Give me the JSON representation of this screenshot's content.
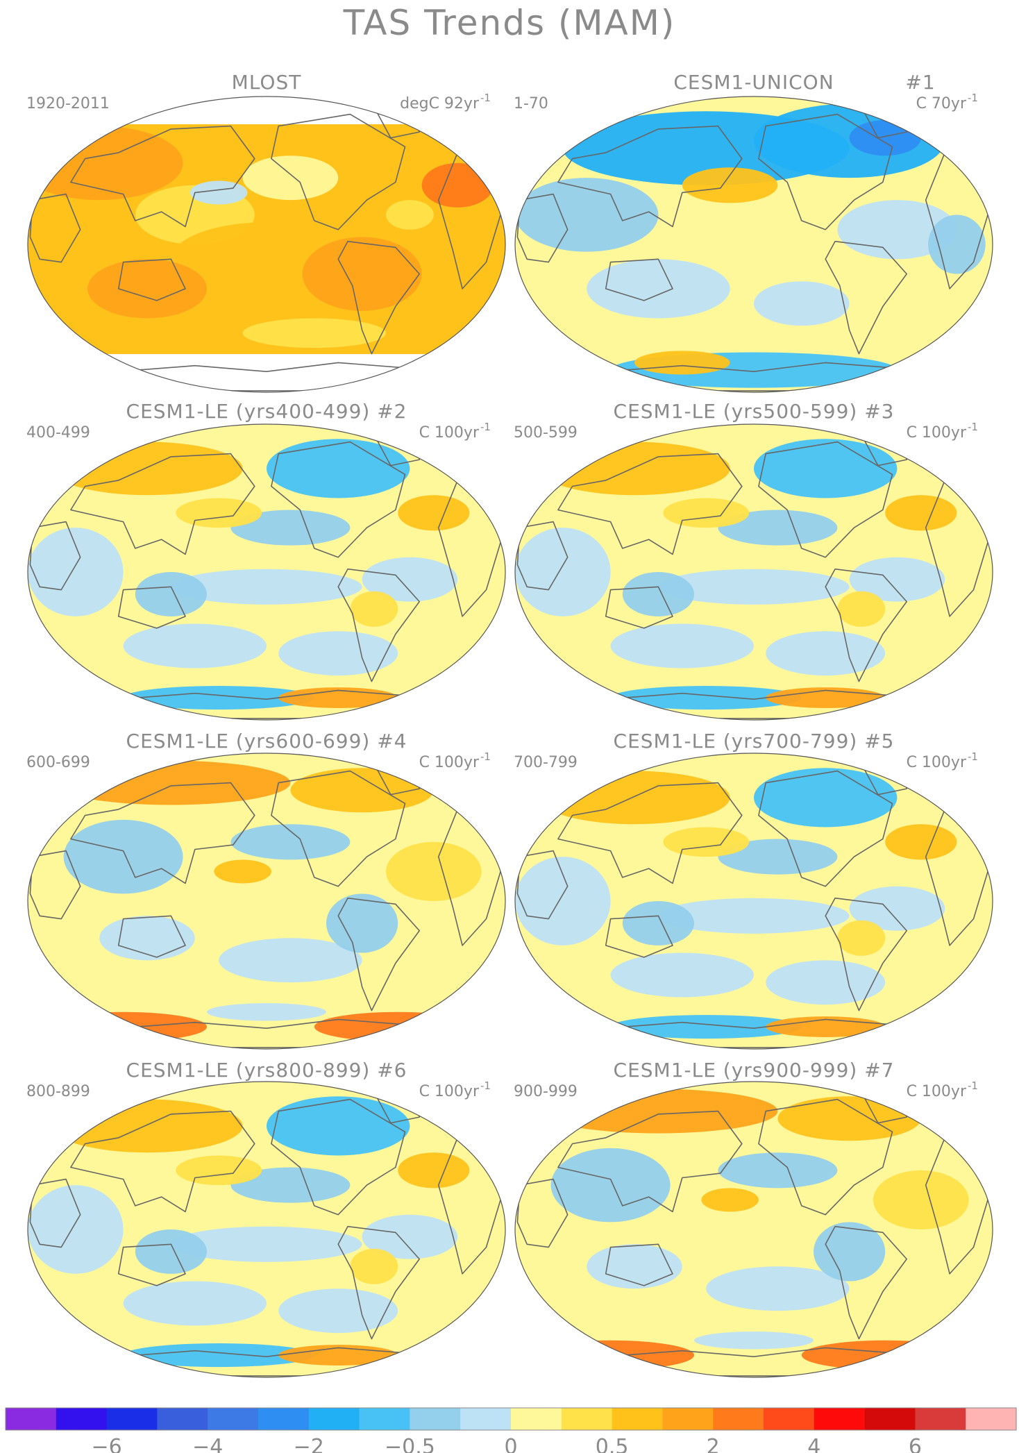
{
  "figure": {
    "title": "TAS Trends (MAM)",
    "panels": [
      {
        "title": "MLOST",
        "period": "1920-2011",
        "units": "degC 92yr",
        "units_exp": "-1",
        "number": "",
        "theme": "obs"
      },
      {
        "title": "CESM1-UNICON",
        "period": "1-70",
        "units": "C 70yr",
        "units_exp": "-1",
        "number": "#1",
        "theme": "cool"
      },
      {
        "title": "CESM1-LE (yrs400-499)",
        "period": "400-499",
        "units": "C 100yr",
        "units_exp": "-1",
        "number": "#2",
        "theme": "mixed"
      },
      {
        "title": "CESM1-LE (yrs500-599)",
        "period": "500-599",
        "units": "C 100yr",
        "units_exp": "-1",
        "number": "#3",
        "theme": "mixed"
      },
      {
        "title": "CESM1-LE (yrs600-699)",
        "period": "600-699",
        "units": "C 100yr",
        "units_exp": "-1",
        "number": "#4",
        "theme": "warmish"
      },
      {
        "title": "CESM1-LE (yrs700-799)",
        "period": "700-799",
        "units": "C 100yr",
        "units_exp": "-1",
        "number": "#5",
        "theme": "mixed"
      },
      {
        "title": "CESM1-LE (yrs800-899)",
        "period": "800-899",
        "units": "C 100yr",
        "units_exp": "-1",
        "number": "#6",
        "theme": "mixed"
      },
      {
        "title": "CESM1-LE (yrs900-999)",
        "period": "900-999",
        "units": "C 100yr",
        "units_exp": "-1",
        "number": "#7",
        "theme": "warmish"
      }
    ],
    "colorbar": {
      "colors": [
        "#8a2be2",
        "#3311ee",
        "#1a2ee8",
        "#3a5fdc",
        "#3d7ae6",
        "#2f8ef2",
        "#22b0f5",
        "#48c2f5",
        "#94cfec",
        "#bee2f5",
        "#fff89a",
        "#ffe14a",
        "#ffc21a",
        "#ffa31a",
        "#ff7a1a",
        "#ff4a1a",
        "#ff0a0a",
        "#d40a0a",
        "#d93a3a",
        "#ffb4b4"
      ],
      "tick_labels": [
        "−6",
        "−4",
        "−2",
        "−0.5",
        "0",
        "0.5",
        "2",
        "4",
        "6"
      ]
    }
  }
}
